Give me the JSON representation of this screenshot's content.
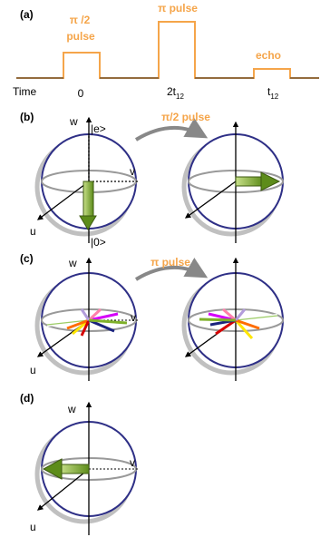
{
  "panel_a": {
    "label": "(a)",
    "pulse1_line1": "π /2",
    "pulse1_line2": "pulse",
    "pulse2": "π pulse",
    "echo": "echo",
    "time": "Time",
    "t0": "0",
    "t2_main": "2t",
    "t2_sub": "12",
    "t3_main": "t",
    "t3_sub": "12"
  },
  "panel_b": {
    "label": "(b)",
    "w": "w",
    "v": "v",
    "u": "u",
    "e_state": "|e>",
    "g_state": "|0>",
    "pulse": "π/2 pulse"
  },
  "panel_c": {
    "label": "(c)",
    "w": "w",
    "v": "v",
    "u": "u",
    "pulse": "π pulse"
  },
  "panel_d": {
    "label": "(d)",
    "w": "w",
    "v": "v",
    "u": "u"
  },
  "colors": {
    "pulse": "#f5a54a",
    "sphere": "#2e2f86",
    "equator": "#999999",
    "arrow_green": "#7fb12a"
  }
}
